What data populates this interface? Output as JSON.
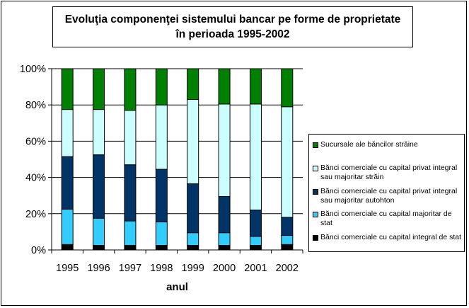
{
  "chart_data": {
    "type": "bar",
    "stacked": true,
    "title": "Evoluţia componenţei sistemului bancar pe forme de proprietate în perioada 1995-2002",
    "xlabel": "anul",
    "ylabel": "",
    "ylim": [
      0,
      100
    ],
    "yticks": [
      "0%",
      "20%",
      "40%",
      "60%",
      "80%",
      "100%"
    ],
    "grid": true,
    "legend_position": "right",
    "categories": [
      "1995",
      "1996",
      "1997",
      "1998",
      "1999",
      "2000",
      "2001",
      "2002"
    ],
    "series": [
      {
        "name": "Bănci comerciale cu capital integral de stat",
        "color": "#000000",
        "values": [
          3,
          2.5,
          2.5,
          2.5,
          2.5,
          2.5,
          2.5,
          3
        ]
      },
      {
        "name": "Bănci comerciale cu capital majoritar de stat",
        "color": "#33ccff",
        "values": [
          19.5,
          15,
          13.5,
          13,
          7,
          7,
          5,
          5
        ]
      },
      {
        "name": "Bănci comerciale cu capital privat integral sau majoritar autohton",
        "color": "#003366",
        "values": [
          29,
          35,
          31,
          29,
          27,
          20,
          14.5,
          10
        ]
      },
      {
        "name": "Bănci comerciale cu capital privat integral sau majoritar străin",
        "color": "#ccffff",
        "values": [
          26,
          25,
          30,
          35.5,
          46.5,
          51,
          58.5,
          61
        ]
      },
      {
        "name": "Sucursale ale băncilor străine",
        "color": "#008000",
        "values": [
          22.5,
          22.5,
          23,
          20,
          17,
          19.5,
          19.5,
          21
        ]
      }
    ]
  }
}
